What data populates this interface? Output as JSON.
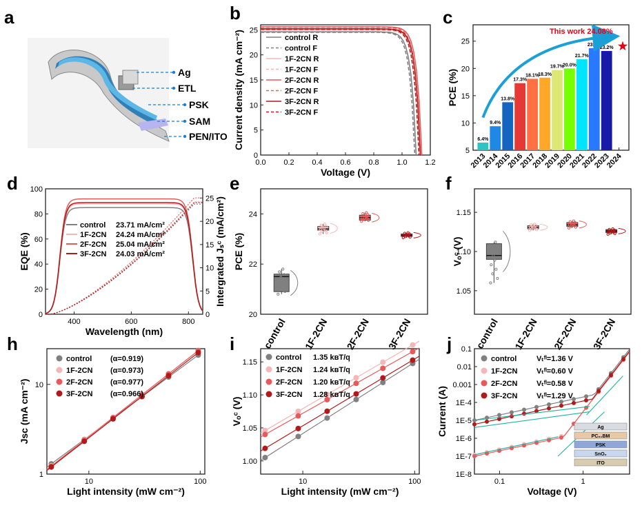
{
  "panel_labels": [
    "a",
    "b",
    "c",
    "d",
    "e",
    "f",
    "h",
    "i",
    "j"
  ],
  "colors": {
    "control": "#808080",
    "f1": "#f4b6b6",
    "f2": "#e85a5a",
    "f3": "#b01a1a",
    "accent": "#e60012",
    "arrow": "#1a9fd6"
  },
  "panel_a": {
    "layers": [
      "Ag",
      "ETL",
      "PSK",
      "SAM",
      "PEN/ITO"
    ]
  },
  "chart_data": [
    {
      "id": "b",
      "type": "line",
      "xlabel": "Voltage (V)",
      "ylabel": "Current density (mA cm⁻²)",
      "xlim": [
        0.0,
        1.2
      ],
      "ylim": [
        0,
        26
      ],
      "xticks": [
        "0.0",
        "0.2",
        "0.4",
        "0.6",
        "0.8",
        "1.0",
        "1.2"
      ],
      "yticks": [
        "0",
        "5",
        "10",
        "15",
        "20",
        "25"
      ],
      "series": [
        {
          "name": "control R",
          "color": "#808080",
          "dash": false,
          "jsc": 24.6,
          "voc": 1.1
        },
        {
          "name": "control F",
          "color": "#808080",
          "dash": true,
          "jsc": 24.5,
          "voc": 1.09
        },
        {
          "name": "1F-2CN R",
          "color": "#f4b6b6",
          "dash": false,
          "jsc": 25.0,
          "voc": 1.13
        },
        {
          "name": "1F-2CN F",
          "color": "#f4b6b6",
          "dash": true,
          "jsc": 24.9,
          "voc": 1.12
        },
        {
          "name": "2F-2CN R",
          "color": "#e85a5a",
          "dash": false,
          "jsc": 25.6,
          "voc": 1.14
        },
        {
          "name": "2F-2CN F",
          "color": "#e85a5a",
          "dash": true,
          "jsc": 25.5,
          "voc": 1.13
        },
        {
          "name": "3F-2CN R",
          "color": "#b01a1a",
          "dash": false,
          "jsc": 25.2,
          "voc": 1.13
        },
        {
          "name": "3F-2CN F",
          "color": "#b01a1a",
          "dash": true,
          "jsc": 25.1,
          "voc": 1.12
        }
      ]
    },
    {
      "id": "c",
      "type": "bar",
      "ylabel": "PCE (%)",
      "ylim": [
        5,
        28
      ],
      "yticks": [
        "5",
        "10",
        "15",
        "20",
        "25"
      ],
      "xticks": [
        "2013",
        "2014",
        "2015",
        "2016",
        "2017",
        "2018",
        "2019",
        "2020",
        "2021",
        "2022",
        "2023",
        "2024"
      ],
      "categories": [
        "2013",
        "2014",
        "2015",
        "2016",
        "2017",
        "2018",
        "2019",
        "2020",
        "2021",
        "2022",
        "2023"
      ],
      "values": [
        6.4,
        9.4,
        13.8,
        17.3,
        18.1,
        18.3,
        19.7,
        20.0,
        21.7,
        23.7,
        23.2
      ],
      "labels": [
        "6.4%",
        "9.4%",
        "13.8%",
        "17.3%",
        "18.1%",
        "18.3%",
        "19.7%",
        "20.0%",
        "21.7%",
        "23.7%",
        "23.2%"
      ],
      "bar_colors": [
        "#2ec4c4",
        "#1f88e5",
        "#1565c0",
        "#e53935",
        "#ff7043",
        "#ffa726",
        "#dce775",
        "#76ff03",
        "#00e5ff",
        "#2979ff",
        "#1a1aa8"
      ],
      "highlight": {
        "text": "This work 24.08%",
        "value": 24.08,
        "x_year": 2023.7
      }
    },
    {
      "id": "d",
      "type": "line",
      "xlabel": "Wavelength (nm)",
      "ylabel": "EQE (%)",
      "y2label": "Intergrated Jₛᶜ (mA/cm²)",
      "xlim": [
        300,
        850
      ],
      "ylim": [
        0,
        100
      ],
      "y2lim": [
        0,
        27
      ],
      "xticks": [
        "400",
        "600",
        "800"
      ],
      "yticks": [
        "0",
        "20",
        "40",
        "60",
        "80",
        "100"
      ],
      "y2ticks": [
        "0",
        "5",
        "10",
        "15",
        "20",
        "25"
      ],
      "series": [
        {
          "name": "control",
          "value": "23.71 mA/cm²",
          "color": "#808080",
          "plateau": 85,
          "jint": 23.71
        },
        {
          "name": "1F-2CN",
          "value": "24.24 mA/cm²",
          "color": "#f4b6b6",
          "plateau": 88,
          "jint": 24.24
        },
        {
          "name": "2F-2CN",
          "value": "25.04 mA/cm²",
          "color": "#e85a5a",
          "plateau": 92,
          "jint": 25.04
        },
        {
          "name": "3F-2CN",
          "value": "24.03 mA/cm²",
          "color": "#b01a1a",
          "plateau": 89,
          "jint": 24.03
        }
      ]
    },
    {
      "id": "e",
      "type": "box",
      "ylabel": "PCE (%)",
      "ylim": [
        20,
        25
      ],
      "yticks": [
        "20",
        "22",
        "24"
      ],
      "categories": [
        "control",
        "1F-2CN",
        "2F-2CN",
        "3F-2CN"
      ],
      "box": [
        {
          "q1": 20.9,
          "q3": 21.6,
          "median": 21.5,
          "min": 20.8,
          "max": 21.8
        },
        {
          "q1": 23.35,
          "q3": 23.5,
          "median": 23.4,
          "min": 23.2,
          "max": 23.6
        },
        {
          "q1": 23.75,
          "q3": 23.95,
          "median": 23.85,
          "min": 23.7,
          "max": 24.05
        },
        {
          "q1": 23.1,
          "q3": 23.2,
          "median": 23.15,
          "min": 23.05,
          "max": 23.25
        }
      ]
    },
    {
      "id": "f",
      "type": "box",
      "ylabel": "Vₒᶜ (V)",
      "ylim": [
        1.02,
        1.18
      ],
      "yticks": [
        "1.05",
        "1.10",
        "1.15"
      ],
      "categories": [
        "control",
        "1F-2CN",
        "2F-2CN",
        "3F-2CN"
      ],
      "box": [
        {
          "q1": 1.09,
          "q3": 1.11,
          "median": 1.095,
          "min": 1.06,
          "max": 1.112
        },
        {
          "q1": 1.129,
          "q3": 1.133,
          "median": 1.131,
          "min": 1.127,
          "max": 1.135
        },
        {
          "q1": 1.132,
          "q3": 1.137,
          "median": 1.134,
          "min": 1.13,
          "max": 1.139
        },
        {
          "q1": 1.124,
          "q3": 1.128,
          "median": 1.126,
          "min": 1.122,
          "max": 1.129
        }
      ]
    },
    {
      "id": "h",
      "type": "scatter",
      "xlabel": "Light intensity (mW cm⁻²)",
      "ylabel": "Jsc (mA cm⁻²)",
      "xscale": "log",
      "yscale": "log",
      "xlim": [
        4.2,
        110
      ],
      "ylim": [
        1,
        25
      ],
      "xticks": [
        "10",
        "100"
      ],
      "yticks": [
        "1",
        "10"
      ],
      "x": [
        4.6,
        9.1,
        16.5,
        30,
        52,
        96
      ],
      "series": [
        {
          "name": "control",
          "alpha": "(α=0.919)",
          "color": "#808080",
          "k": 1.3,
          "a": 0.919
        },
        {
          "name": "1F-2CN",
          "alpha": "(α=0.973)",
          "color": "#f4b6b6",
          "k": 1.24,
          "a": 0.973
        },
        {
          "name": "2F-2CN",
          "alpha": "(α=0.977)",
          "color": "#e85a5a",
          "k": 1.22,
          "a": 0.977
        },
        {
          "name": "3F-2CN",
          "alpha": "(α=0.966)",
          "color": "#b01a1a",
          "k": 1.2,
          "a": 0.966
        }
      ]
    },
    {
      "id": "i",
      "type": "scatter",
      "xlabel": "Light intensity (mW cm⁻²)",
      "ylabel": "Vₒᶜ (V)",
      "xscale": "log",
      "xlim": [
        4.2,
        110
      ],
      "ylim": [
        0.98,
        1.17
      ],
      "xticks": [
        "10",
        "100"
      ],
      "yticks": [
        "1.00",
        "1.05",
        "1.10",
        "1.15"
      ],
      "x": [
        4.6,
        9.1,
        16.5,
        30,
        52,
        96
      ],
      "series": [
        {
          "name": "control",
          "slope": "1.35 kʙT/q",
          "color": "#808080",
          "y0": 1.005,
          "s": 0.0352
        },
        {
          "name": "1F-2CN",
          "slope": "1.24 kʙT/q",
          "color": "#f4b6b6",
          "y0": 1.046,
          "s": 0.032
        },
        {
          "name": "2F-2CN",
          "slope": "1.20 kʙT/q",
          "color": "#e85a5a",
          "y0": 1.04,
          "s": 0.031
        },
        {
          "name": "3F-2CN",
          "slope": "1.28 kʙT/q",
          "color": "#b01a1a",
          "y0": 1.019,
          "s": 0.033
        }
      ]
    },
    {
      "id": "j",
      "type": "line",
      "xlabel": "Voltage (V)",
      "ylabel": "Current (A)",
      "xscale": "log",
      "yscale": "log",
      "xlim": [
        0.05,
        3.6
      ],
      "ylim": [
        1e-08,
        0.1
      ],
      "xticks": [
        "0.1",
        "1"
      ],
      "yticks": [
        "1E-8",
        "1E-7",
        "1E-6",
        "1E-5",
        "1E-4",
        "0.001",
        "0.01",
        "0.1"
      ],
      "series": [
        {
          "name": "control",
          "vtfl": "Vₜᶠˡ=1.36 V",
          "color": "#808080",
          "i0": 1e-05,
          "vt": 1.36
        },
        {
          "name": "1F-2CN",
          "vtfl": "Vₜᶠˡ=0.60 V",
          "color": "#f4b6b6",
          "i0": 1.2e-07,
          "vt": 0.6
        },
        {
          "name": "2F-2CN",
          "vtfl": "Vₜᶠˡ=0.58 V",
          "color": "#e85a5a",
          "i0": 1e-07,
          "vt": 0.58
        },
        {
          "name": "3F-2CN",
          "vtfl": "Vₜᶠˡ=1.29 V",
          "color": "#b01a1a",
          "i0": 6e-06,
          "vt": 1.29
        }
      ],
      "inset_layers": [
        "Ag",
        "PC₆₁BM",
        "PSK",
        "SnO₂",
        "ITO"
      ]
    }
  ]
}
